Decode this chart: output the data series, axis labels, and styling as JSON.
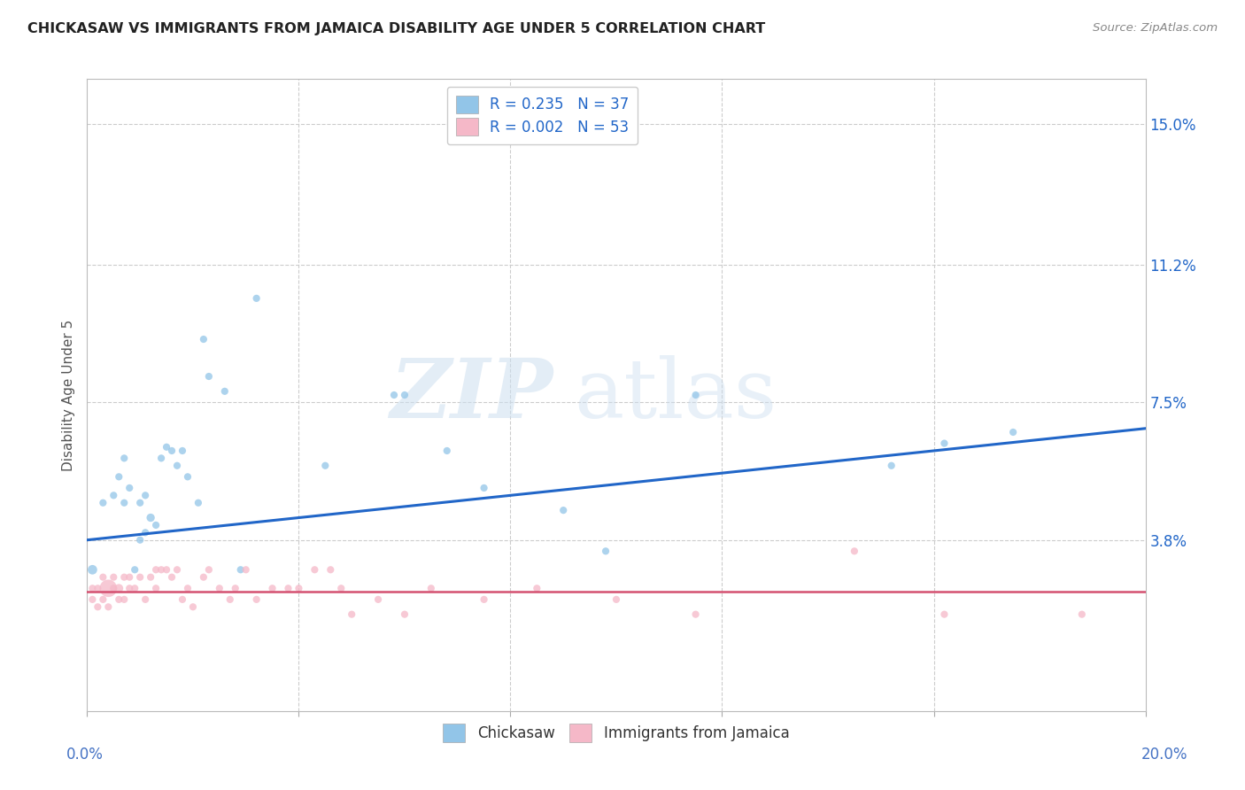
{
  "title": "CHICKASAW VS IMMIGRANTS FROM JAMAICA DISABILITY AGE UNDER 5 CORRELATION CHART",
  "source": "Source: ZipAtlas.com",
  "ylabel": "Disability Age Under 5",
  "yticks": [
    0.0,
    0.038,
    0.075,
    0.112,
    0.15
  ],
  "ytick_labels": [
    "",
    "3.8%",
    "7.5%",
    "11.2%",
    "15.0%"
  ],
  "xlim": [
    0.0,
    0.2
  ],
  "ylim": [
    -0.008,
    0.162
  ],
  "legend_blue_label": "R = 0.235   N = 37",
  "legend_pink_label": "R = 0.002   N = 53",
  "legend_bottom_label1": "Chickasaw",
  "legend_bottom_label2": "Immigrants from Jamaica",
  "blue_color": "#92c5e8",
  "pink_color": "#f5b8c8",
  "blue_line_color": "#2166c8",
  "pink_line_color": "#d45070",
  "title_color": "#222222",
  "axis_label_color": "#555555",
  "tick_color": "#4472c4",
  "watermark_zip": "ZIP",
  "watermark_atlas": "atlas",
  "blue_x": [
    0.001,
    0.003,
    0.005,
    0.006,
    0.007,
    0.007,
    0.008,
    0.009,
    0.01,
    0.01,
    0.011,
    0.011,
    0.012,
    0.013,
    0.014,
    0.015,
    0.016,
    0.017,
    0.018,
    0.019,
    0.021,
    0.022,
    0.023,
    0.026,
    0.029,
    0.032,
    0.045,
    0.058,
    0.06,
    0.068,
    0.075,
    0.09,
    0.098,
    0.115,
    0.152,
    0.162,
    0.175
  ],
  "blue_y": [
    0.03,
    0.048,
    0.05,
    0.055,
    0.048,
    0.06,
    0.052,
    0.03,
    0.038,
    0.048,
    0.04,
    0.05,
    0.044,
    0.042,
    0.06,
    0.063,
    0.062,
    0.058,
    0.062,
    0.055,
    0.048,
    0.092,
    0.082,
    0.078,
    0.03,
    0.103,
    0.058,
    0.077,
    0.077,
    0.062,
    0.052,
    0.046,
    0.035,
    0.077,
    0.058,
    0.064,
    0.067
  ],
  "blue_sizes": [
    60,
    35,
    35,
    35,
    35,
    35,
    35,
    35,
    35,
    35,
    35,
    35,
    45,
    35,
    35,
    35,
    35,
    35,
    35,
    35,
    35,
    35,
    35,
    35,
    35,
    35,
    35,
    35,
    35,
    35,
    35,
    35,
    35,
    35,
    35,
    35,
    35
  ],
  "pink_x": [
    0.001,
    0.001,
    0.002,
    0.002,
    0.003,
    0.003,
    0.004,
    0.004,
    0.005,
    0.005,
    0.006,
    0.006,
    0.007,
    0.007,
    0.008,
    0.008,
    0.009,
    0.01,
    0.011,
    0.012,
    0.013,
    0.013,
    0.014,
    0.015,
    0.016,
    0.017,
    0.018,
    0.019,
    0.02,
    0.022,
    0.023,
    0.025,
    0.027,
    0.028,
    0.03,
    0.032,
    0.035,
    0.038,
    0.04,
    0.043,
    0.046,
    0.048,
    0.05,
    0.055,
    0.06,
    0.065,
    0.075,
    0.085,
    0.1,
    0.115,
    0.145,
    0.162,
    0.188
  ],
  "pink_y": [
    0.022,
    0.025,
    0.02,
    0.025,
    0.022,
    0.028,
    0.02,
    0.025,
    0.025,
    0.028,
    0.022,
    0.025,
    0.022,
    0.028,
    0.025,
    0.028,
    0.025,
    0.028,
    0.022,
    0.028,
    0.025,
    0.03,
    0.03,
    0.03,
    0.028,
    0.03,
    0.022,
    0.025,
    0.02,
    0.028,
    0.03,
    0.025,
    0.022,
    0.025,
    0.03,
    0.022,
    0.025,
    0.025,
    0.025,
    0.03,
    0.03,
    0.025,
    0.018,
    0.022,
    0.018,
    0.025,
    0.022,
    0.025,
    0.022,
    0.018,
    0.035,
    0.018,
    0.018
  ],
  "pink_sizes": [
    35,
    35,
    35,
    35,
    35,
    35,
    35,
    200,
    35,
    35,
    35,
    50,
    35,
    35,
    35,
    35,
    35,
    35,
    35,
    35,
    35,
    35,
    35,
    35,
    35,
    35,
    35,
    35,
    35,
    35,
    35,
    35,
    35,
    35,
    35,
    35,
    35,
    35,
    35,
    35,
    35,
    35,
    35,
    35,
    35,
    35,
    35,
    35,
    35,
    35,
    35,
    35,
    35
  ],
  "blue_line_x": [
    0.0,
    0.2
  ],
  "blue_line_y": [
    0.038,
    0.068
  ],
  "pink_line_x": [
    0.0,
    0.2
  ],
  "pink_line_y": [
    0.024,
    0.024
  ],
  "background_color": "#ffffff",
  "grid_color": "#cccccc",
  "grid_style": "--"
}
